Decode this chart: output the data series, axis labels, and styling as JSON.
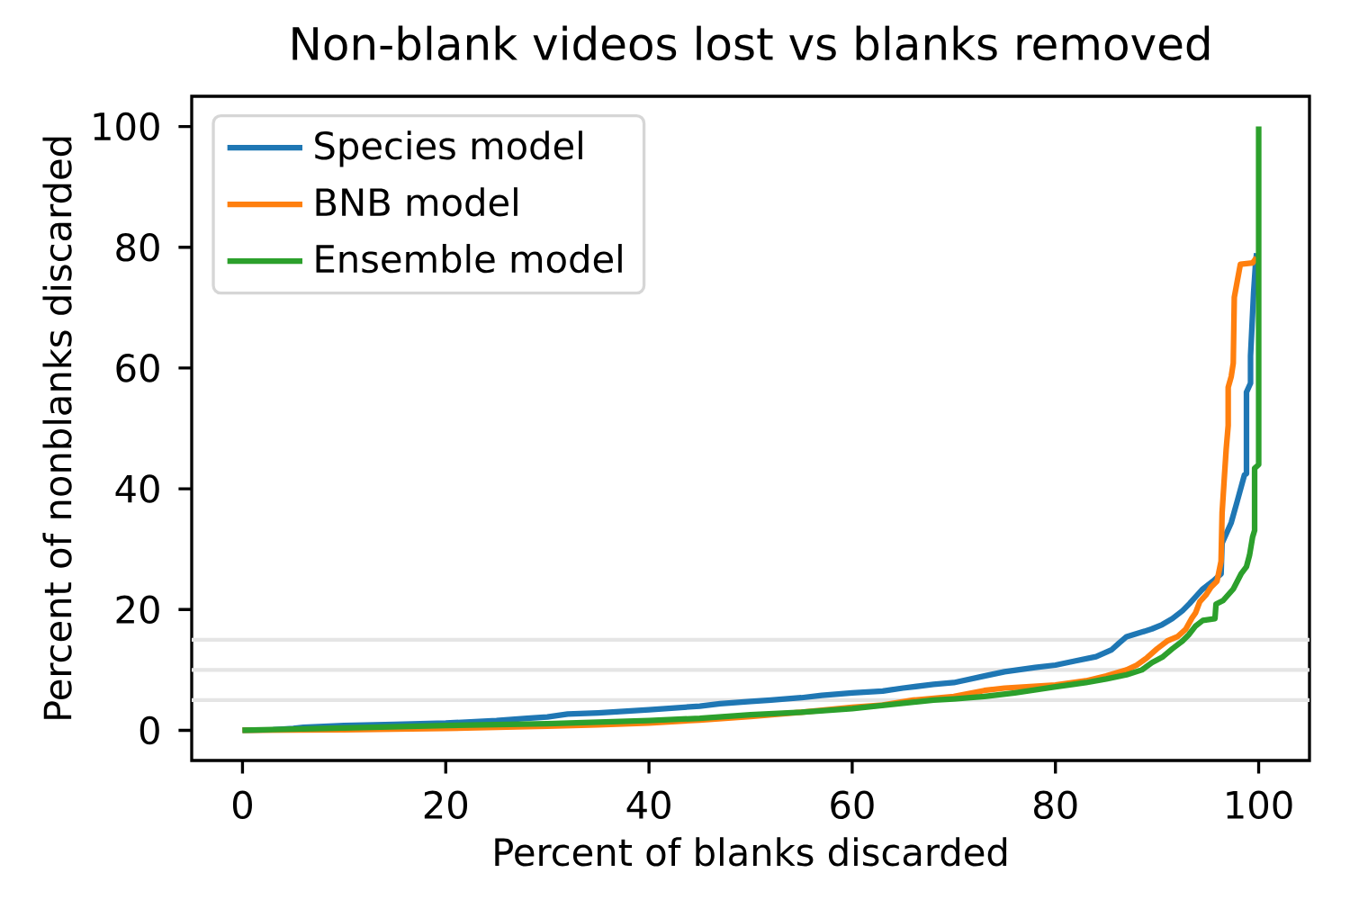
{
  "chart_data": {
    "type": "line",
    "title": "Non-blank videos lost vs blanks removed",
    "xlabel": "Percent of blanks discarded",
    "ylabel": "Percent of nonblanks discarded",
    "xlim": [
      -5,
      105
    ],
    "ylim": [
      -5,
      105
    ],
    "xticks": [
      0,
      20,
      40,
      60,
      80,
      100
    ],
    "yticks": [
      0,
      20,
      40,
      60,
      80,
      100
    ],
    "legend": "top left",
    "line_style": "solid",
    "ref_lines": [
      {
        "axis": "y",
        "value": 5,
        "color": "#e5e5e5"
      },
      {
        "axis": "y",
        "value": 10,
        "color": "#e5e5e5"
      },
      {
        "axis": "y",
        "value": 15,
        "color": "#e5e5e5"
      }
    ],
    "series": [
      {
        "name": "Species model",
        "color": "#1f77b4",
        "x": [
          0,
          3,
          5,
          6,
          10,
          15,
          20,
          25,
          28,
          30,
          32,
          35,
          40,
          45,
          47,
          50,
          52,
          55,
          57,
          60,
          63,
          65,
          68,
          70,
          73,
          75,
          78,
          80,
          82,
          84,
          85.5,
          86.3,
          87,
          88,
          89.5,
          90.5,
          91.5,
          92.5,
          93.2,
          94,
          94.5,
          95.5,
          96.3,
          96.4,
          97.3,
          97.9,
          98.6,
          98.8,
          98.8,
          99.2,
          99.2,
          99.5,
          99.7,
          99.8
        ],
        "values": [
          0,
          0.1,
          0.3,
          0.5,
          0.8,
          1.0,
          1.2,
          1.6,
          2.0,
          2.2,
          2.7,
          2.9,
          3.4,
          4.0,
          4.4,
          4.8,
          5.0,
          5.4,
          5.8,
          6.2,
          6.5,
          7.0,
          7.6,
          7.9,
          9.0,
          9.7,
          10.4,
          10.8,
          11.5,
          12.2,
          13.3,
          14.5,
          15.5,
          16.0,
          16.8,
          17.5,
          18.5,
          19.8,
          21,
          22.5,
          23.4,
          24.7,
          25.9,
          31,
          34.4,
          38,
          42.3,
          42.5,
          56,
          57.5,
          62,
          72.4,
          77.5,
          79
        ]
      },
      {
        "name": "BNB model",
        "color": "#ff7f0e",
        "x": [
          0,
          10,
          20,
          30,
          35,
          40,
          45,
          50,
          55,
          60,
          63,
          66,
          70,
          73,
          75,
          80,
          83,
          85,
          87,
          88,
          89,
          90,
          91,
          92,
          92.8,
          93.4,
          93.8,
          94.2,
          94.8,
          95.3,
          95.9,
          96.3,
          96.4,
          96.6,
          96.8,
          97.0,
          97.0,
          97.3,
          97.5,
          97.6,
          98.2,
          99.4,
          99.8
        ],
        "values": [
          0,
          0.1,
          0.3,
          0.7,
          0.9,
          1.2,
          1.7,
          2.3,
          3.0,
          3.8,
          4.2,
          5.0,
          5.6,
          6.6,
          7.0,
          7.5,
          8.2,
          9.0,
          10.0,
          10.8,
          12.0,
          13.5,
          14.8,
          15.5,
          16.7,
          18.5,
          19.5,
          21.3,
          22.4,
          23.7,
          24.7,
          28,
          36,
          41.3,
          46.5,
          50.5,
          56.8,
          58.6,
          60.8,
          71.7,
          77.2,
          77.4,
          78.3
        ]
      },
      {
        "name": "Ensemble model",
        "color": "#2ca02c",
        "x": [
          0,
          10,
          20,
          30,
          40,
          45,
          50,
          55,
          60,
          65,
          68,
          70,
          73,
          76,
          80,
          83,
          85,
          87,
          88.5,
          89.5,
          90.5,
          91.5,
          92.5,
          93.1,
          93.8,
          94.5,
          95.7,
          95.8,
          96.5,
          97.5,
          97.9,
          98.3,
          98.8,
          99.1,
          99.4,
          99.6,
          99.6,
          100,
          100
        ],
        "values": [
          0,
          0.4,
          0.8,
          1.1,
          1.6,
          2.0,
          2.6,
          3.0,
          3.6,
          4.5,
          5.0,
          5.2,
          5.6,
          6.2,
          7.2,
          7.9,
          8.5,
          9.2,
          10.0,
          11.2,
          12.1,
          13.5,
          14.8,
          15.8,
          17.3,
          18.2,
          18.5,
          20.9,
          21.5,
          23.4,
          24.7,
          26.0,
          27.1,
          29,
          32,
          33.1,
          43.4,
          44,
          100
        ]
      }
    ]
  }
}
